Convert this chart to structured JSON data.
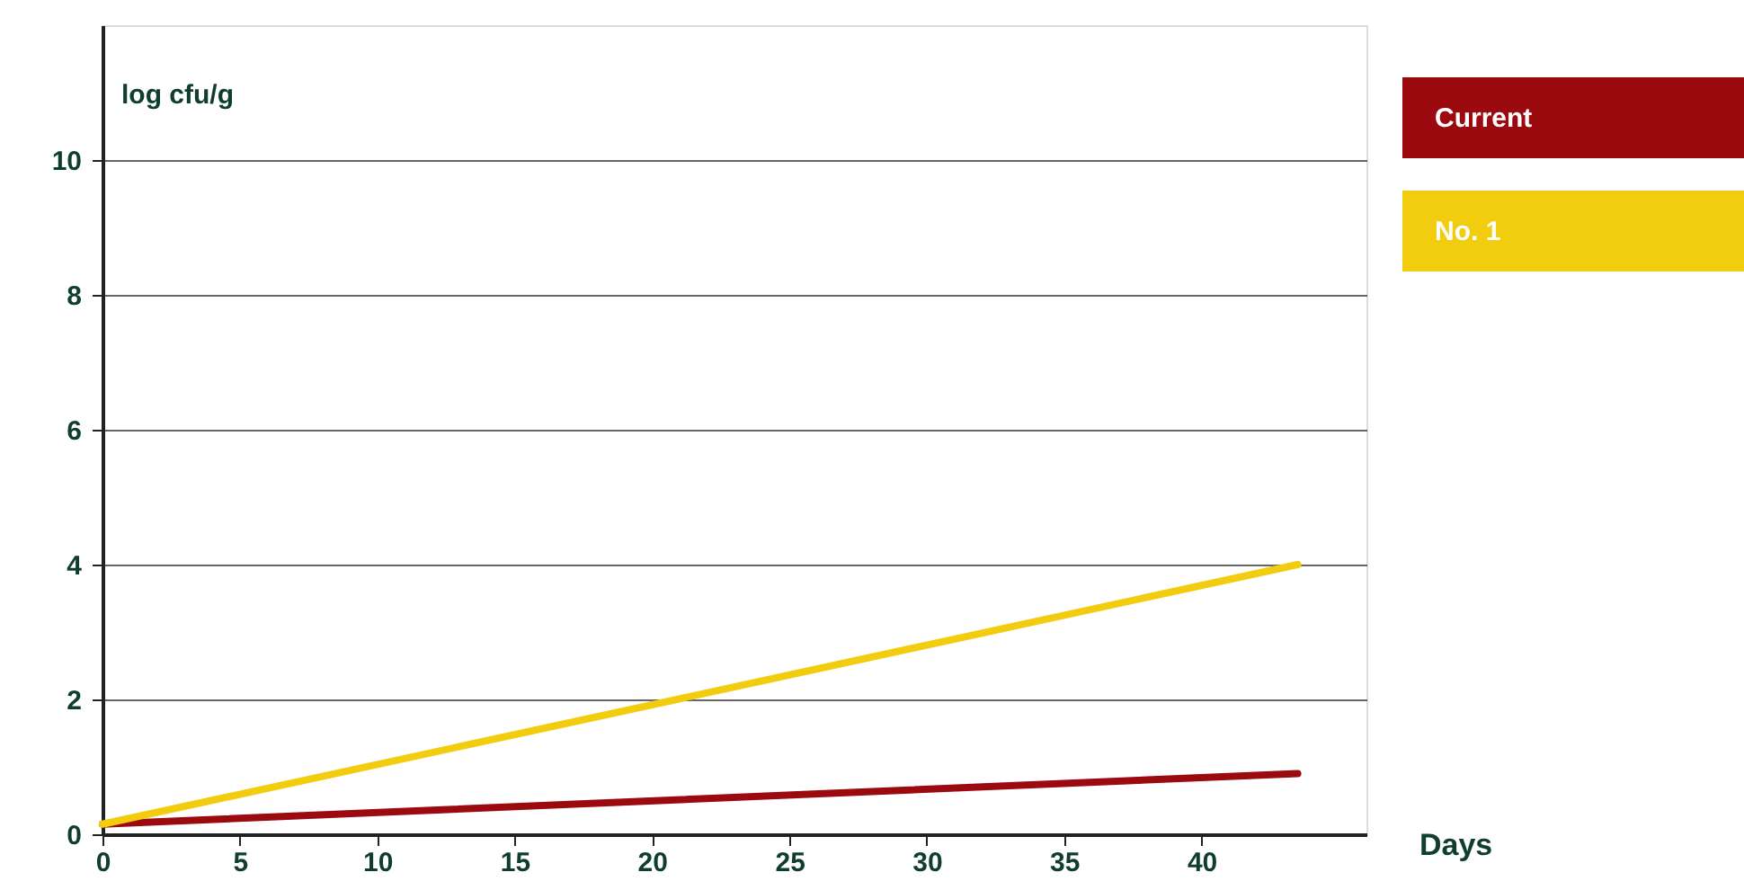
{
  "chart_data": {
    "type": "line",
    "xlabel": "Days",
    "ylabel": "log cfu/g",
    "x": [
      0,
      43.5
    ],
    "series": [
      {
        "name": "Current",
        "color": "#9b0a0e",
        "values": [
          0.15,
          0.9
        ]
      },
      {
        "name": "No. 1",
        "color": "#f2cc0f",
        "values": [
          0.15,
          4.0
        ]
      }
    ],
    "xlim": [
      0,
      46
    ],
    "xticks": [
      0,
      5,
      10,
      15,
      20,
      25,
      30,
      35,
      40
    ],
    "ylim": [
      0,
      12
    ],
    "yticks": [
      0,
      2,
      4,
      6,
      8,
      10
    ],
    "grid": "y",
    "legend": "top right",
    "marker": "none",
    "line_style": "solid"
  }
}
